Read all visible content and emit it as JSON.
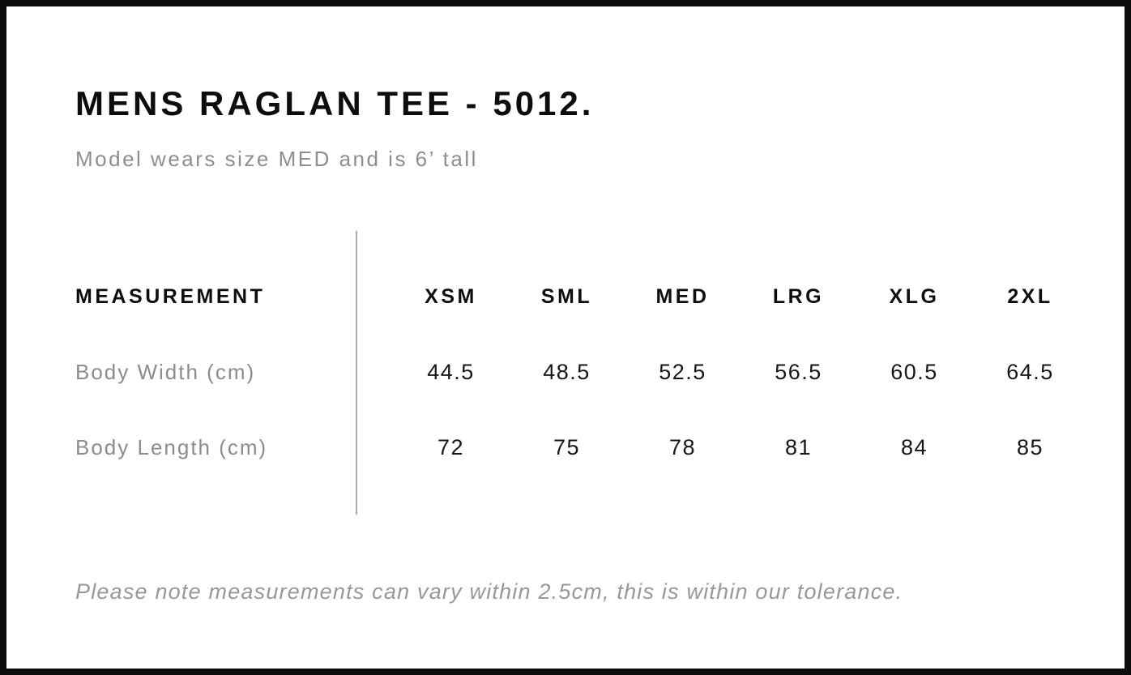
{
  "page": {
    "title": "MENS RAGLAN TEE - 5012.",
    "subtitle": "Model wears size MED and is 6’ tall",
    "footnote": "Please note measurements can vary within 2.5cm, this is within our tolerance."
  },
  "size_chart": {
    "measurement_header": "MEASUREMENT",
    "sizes": [
      "XSM",
      "SML",
      "MED",
      "LRG",
      "XLG",
      "2XL"
    ],
    "rows": [
      {
        "label": "Body Width (cm)",
        "values": [
          "44.5",
          "48.5",
          "52.5",
          "56.5",
          "60.5",
          "64.5"
        ]
      },
      {
        "label": "Body Length (cm)",
        "values": [
          "72",
          "75",
          "78",
          "81",
          "84",
          "85"
        ]
      }
    ]
  },
  "colors": {
    "border": "#0d0d0d",
    "heading": "#0d0d0d",
    "muted": "#8e8e8e",
    "value": "#161616",
    "divider": "#a9a9a9"
  }
}
